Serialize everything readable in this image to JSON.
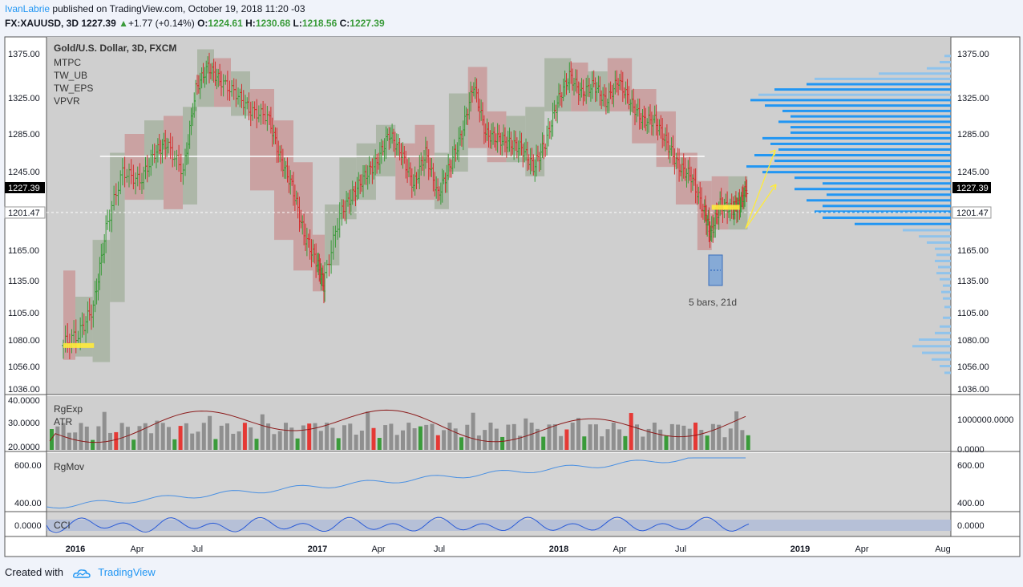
{
  "header": {
    "author": "IvanLabrie",
    "published": "published on TradingView.com, October 19, 2018 11:20 -03",
    "symbol": "FX:XAUUSD, 3D",
    "last": "1227.39",
    "change": "+1.77 (+0.14%)",
    "o_label": "O:",
    "o": "1224.61",
    "h_label": "H:",
    "h": "1230.68",
    "l_label": "L:",
    "l": "1218.56",
    "c_label": "C:",
    "c": "1227.39"
  },
  "legend": {
    "title": "Gold/U.S. Dollar, 3D, FXCM",
    "items": [
      "MTPC",
      "TW_UB",
      "TW_EPS",
      "VPVR"
    ]
  },
  "annotation": {
    "bars_text": "5 bars, 21d"
  },
  "panes": {
    "volume": {
      "labels": [
        "RgExp",
        "ATR"
      ],
      "left_ticks": [
        "40.0000",
        "30.0000",
        "20.0000"
      ],
      "right_ticks": [
        "1000000.0000",
        "0.0000"
      ]
    },
    "mov": {
      "label": "RgMov",
      "left_ticks": [
        "600.00",
        "400.00"
      ],
      "right_ticks": [
        "600.00",
        "400.00"
      ]
    },
    "cci": {
      "label": "CCI",
      "left_ticks": [
        "0.0000"
      ],
      "right_ticks": [
        "0.0000"
      ]
    }
  },
  "price_badges": {
    "current": "1227.39",
    "poc": "1201.47"
  },
  "footer": {
    "created": "Created with",
    "brand": "TradingView"
  },
  "colors": {
    "up": "#3a9b3a",
    "down": "#d32f2f",
    "pane_bg": "#cfcfcf",
    "vpvr": "#2196f3",
    "vpvr_light": "#8fc3ec",
    "green_box": "#a9b4a3",
    "red_box": "#c99c9c"
  },
  "chart_data": {
    "type": "line",
    "title": "Gold/U.S. Dollar, 3D, FXCM",
    "y_ticks": [
      1375.0,
      1325.0,
      1285.0,
      1245.0,
      1201.47,
      1165.0,
      1135.0,
      1105.0,
      1080.0,
      1056.0,
      1036.0
    ],
    "x_ticks": [
      "2016",
      "Apr",
      "Jul",
      "2017",
      "Apr",
      "Jul",
      "2018",
      "Apr",
      "Jul",
      "2019",
      "Apr",
      "Aug"
    ],
    "ylim": [
      1030,
      1390
    ],
    "series": [
      {
        "values_by_time": [
          [
            2015.95,
            1075
          ],
          [
            2016.02,
            1085
          ],
          [
            2016.08,
            1110
          ],
          [
            2016.13,
            1185
          ],
          [
            2016.2,
            1245
          ],
          [
            2016.27,
            1235
          ],
          [
            2016.33,
            1265
          ],
          [
            2016.38,
            1275
          ],
          [
            2016.45,
            1245
          ],
          [
            2016.5,
            1335
          ],
          [
            2016.55,
            1360
          ],
          [
            2016.6,
            1345
          ],
          [
            2016.67,
            1330
          ],
          [
            2016.73,
            1310
          ],
          [
            2016.8,
            1305
          ],
          [
            2016.85,
            1260
          ],
          [
            2016.9,
            1230
          ],
          [
            2016.95,
            1180
          ],
          [
            2017.0,
            1155
          ],
          [
            2017.03,
            1130
          ],
          [
            2017.1,
            1200
          ],
          [
            2017.15,
            1220
          ],
          [
            2017.2,
            1240
          ],
          [
            2017.25,
            1255
          ],
          [
            2017.3,
            1285
          ],
          [
            2017.35,
            1265
          ],
          [
            2017.4,
            1230
          ],
          [
            2017.45,
            1265
          ],
          [
            2017.5,
            1220
          ],
          [
            2017.55,
            1250
          ],
          [
            2017.6,
            1285
          ],
          [
            2017.65,
            1340
          ],
          [
            2017.7,
            1285
          ],
          [
            2017.75,
            1280
          ],
          [
            2017.8,
            1275
          ],
          [
            2017.85,
            1270
          ],
          [
            2017.9,
            1250
          ],
          [
            2017.95,
            1275
          ],
          [
            2018.0,
            1320
          ],
          [
            2018.05,
            1350
          ],
          [
            2018.1,
            1330
          ],
          [
            2018.15,
            1340
          ],
          [
            2018.2,
            1320
          ],
          [
            2018.25,
            1345
          ],
          [
            2018.3,
            1320
          ],
          [
            2018.35,
            1300
          ],
          [
            2018.4,
            1300
          ],
          [
            2018.45,
            1275
          ],
          [
            2018.5,
            1250
          ],
          [
            2018.55,
            1240
          ],
          [
            2018.6,
            1205
          ],
          [
            2018.63,
            1180
          ],
          [
            2018.67,
            1210
          ],
          [
            2018.72,
            1205
          ],
          [
            2018.75,
            1210
          ],
          [
            2018.78,
            1227.39
          ]
        ]
      }
    ],
    "annotation": "5 bars, 21d"
  }
}
